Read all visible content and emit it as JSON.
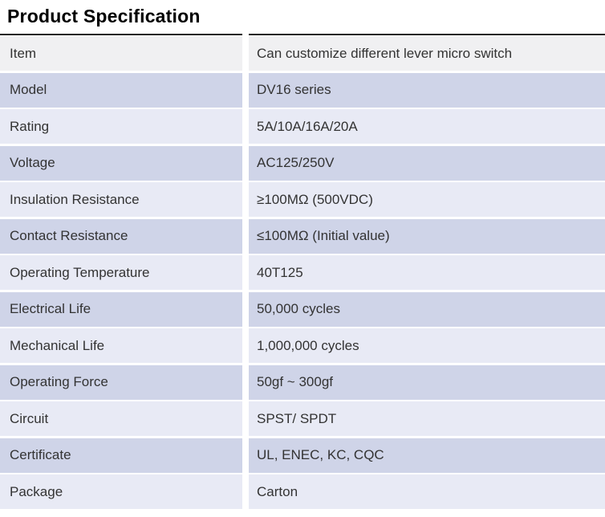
{
  "title": "Product Specification",
  "colors": {
    "row_header": "#f0f0f2",
    "row_dark": "#cfd4e8",
    "row_light": "#e8eaf5",
    "rule": "#1a1a1a",
    "text": "#333333",
    "title_text": "#000000"
  },
  "table": {
    "rows": [
      {
        "label": "Item",
        "value": "Can customize different lever micro switch"
      },
      {
        "label": "Model",
        "value": "DV16 series"
      },
      {
        "label": "Rating",
        "value": "5A/10A/16A/20A"
      },
      {
        "label": "Voltage",
        "value": "AC125/250V"
      },
      {
        "label": "Insulation Resistance",
        "value": "≥100MΩ (500VDC)"
      },
      {
        "label": "Contact Resistance",
        "value": "≤100MΩ (Initial value)"
      },
      {
        "label": "Operating Temperature",
        "value": "40T125"
      },
      {
        "label": "Electrical Life",
        "value": "50,000 cycles"
      },
      {
        "label": "Mechanical Life",
        "value": "1,000,000 cycles"
      },
      {
        "label": "Operating Force",
        "value": "50gf ~ 300gf"
      },
      {
        "label": "Circuit",
        "value": "SPST/ SPDT"
      },
      {
        "label": "Certificate",
        "value": "UL, ENEC, KC, CQC"
      },
      {
        "label": "Package",
        "value": "Carton"
      }
    ]
  }
}
